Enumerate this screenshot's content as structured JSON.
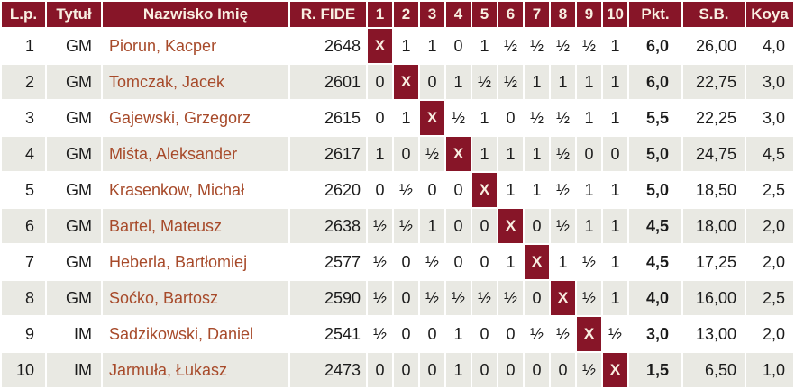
{
  "colors": {
    "maroon": "#871528",
    "header_text": "#f9efe2",
    "name_text": "#a74a2a",
    "row_alt": "#e9e9e3",
    "text": "#1b1b1b"
  },
  "table": {
    "headers": [
      "L.p.",
      "Tytuł",
      "Nazwisko Imię",
      "R. FIDE",
      "1",
      "2",
      "3",
      "4",
      "5",
      "6",
      "7",
      "8",
      "9",
      "10",
      "Pkt.",
      "S.B.",
      "Koya"
    ],
    "rows": [
      {
        "lp": "1",
        "title": "GM",
        "name": "Piorun, Kacper",
        "rating": "2648",
        "results": [
          "X",
          "1",
          "1",
          "0",
          "1",
          "½",
          "½",
          "½",
          "½",
          "1"
        ],
        "pkt": "6,0",
        "sb": "26,00",
        "koya": "4,0"
      },
      {
        "lp": "2",
        "title": "GM",
        "name": "Tomczak, Jacek",
        "rating": "2601",
        "results": [
          "0",
          "X",
          "0",
          "1",
          "½",
          "½",
          "1",
          "1",
          "1",
          "1"
        ],
        "pkt": "6,0",
        "sb": "22,75",
        "koya": "3,0"
      },
      {
        "lp": "3",
        "title": "GM",
        "name": "Gajewski, Grzegorz",
        "rating": "2615",
        "results": [
          "0",
          "1",
          "X",
          "½",
          "1",
          "0",
          "½",
          "½",
          "1",
          "1"
        ],
        "pkt": "5,5",
        "sb": "22,25",
        "koya": "3,0"
      },
      {
        "lp": "4",
        "title": "GM",
        "name": "Miśta, Aleksander",
        "rating": "2617",
        "results": [
          "1",
          "0",
          "½",
          "X",
          "1",
          "1",
          "1",
          "½",
          "0",
          "0"
        ],
        "pkt": "5,0",
        "sb": "24,75",
        "koya": "4,5"
      },
      {
        "lp": "5",
        "title": "GM",
        "name": "Krasenkow, Michał",
        "rating": "2620",
        "results": [
          "0",
          "½",
          "0",
          "0",
          "X",
          "1",
          "1",
          "½",
          "1",
          "1"
        ],
        "pkt": "5,0",
        "sb": "18,50",
        "koya": "2,5"
      },
      {
        "lp": "6",
        "title": "GM",
        "name": "Bartel, Mateusz",
        "rating": "2638",
        "results": [
          "½",
          "½",
          "1",
          "0",
          "0",
          "X",
          "0",
          "½",
          "1",
          "1"
        ],
        "pkt": "4,5",
        "sb": "18,00",
        "koya": "2,0"
      },
      {
        "lp": "7",
        "title": "GM",
        "name": "Heberla, Bartłomiej",
        "rating": "2577",
        "results": [
          "½",
          "0",
          "½",
          "0",
          "0",
          "1",
          "X",
          "1",
          "½",
          "1"
        ],
        "pkt": "4,5",
        "sb": "17,25",
        "koya": "2,0"
      },
      {
        "lp": "8",
        "title": "GM",
        "name": "Soćko, Bartosz",
        "rating": "2590",
        "results": [
          "½",
          "0",
          "½",
          "½",
          "½",
          "½",
          "0",
          "X",
          "½",
          "1"
        ],
        "pkt": "4,0",
        "sb": "16,00",
        "koya": "2,5"
      },
      {
        "lp": "9",
        "title": "IM",
        "name": "Sadzikowski, Daniel",
        "rating": "2541",
        "results": [
          "½",
          "0",
          "0",
          "1",
          "0",
          "0",
          "½",
          "½",
          "X",
          "½"
        ],
        "pkt": "3,0",
        "sb": "13,00",
        "koya": "2,0"
      },
      {
        "lp": "10",
        "title": "IM",
        "name": "Jarmuła, Łukasz",
        "rating": "2473",
        "results": [
          "0",
          "0",
          "0",
          "1",
          "0",
          "0",
          "0",
          "0",
          "½",
          "X"
        ],
        "pkt": "1,5",
        "sb": "6,50",
        "koya": "1,0"
      }
    ]
  }
}
